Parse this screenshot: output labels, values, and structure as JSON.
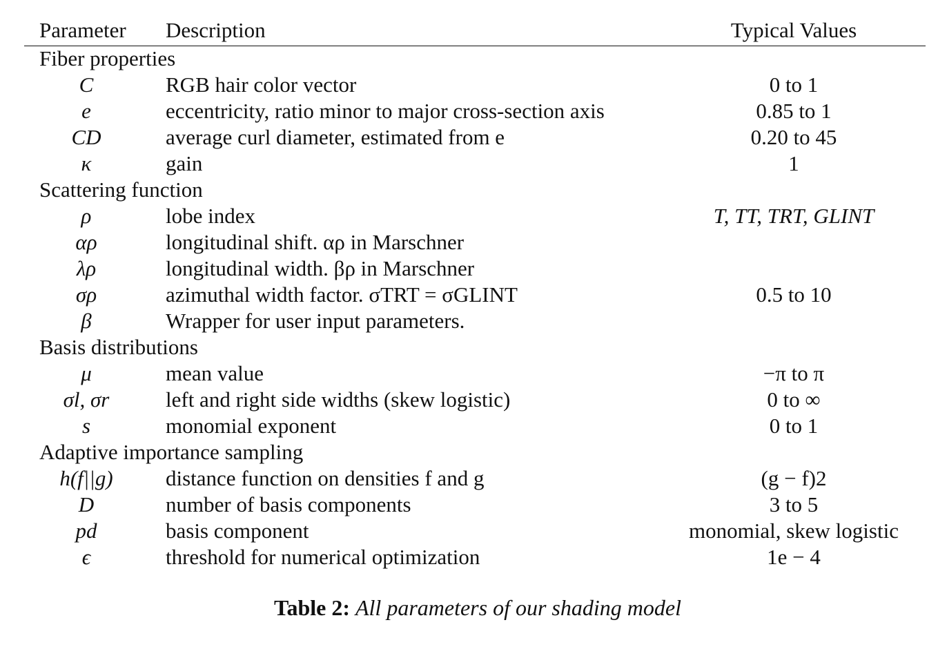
{
  "headers": {
    "parameter": "Parameter",
    "description": "Description",
    "values": "Typical Values"
  },
  "sections": [
    {
      "title": "Fiber properties",
      "rows": [
        {
          "symbol": "C",
          "description": "RGB hair color vector",
          "value": "0 to 1"
        },
        {
          "symbol": "e",
          "description": "eccentricity, ratio minor to major cross-section axis",
          "value": "0.85 to 1"
        },
        {
          "symbol": "CD",
          "description": "average curl diameter, estimated from e",
          "value": "0.20 to 45"
        },
        {
          "symbol": "κ",
          "description": "gain",
          "value": "1"
        }
      ]
    },
    {
      "title": "Scattering function",
      "rows": [
        {
          "symbol": "ρ",
          "description": "lobe index",
          "value": "T, TT, TRT, GLINT"
        },
        {
          "symbol": "αρ",
          "description": "longitudinal shift. αρ in Marschner",
          "value": ""
        },
        {
          "symbol": "λρ",
          "description": "longitudinal width. βρ in Marschner",
          "value": ""
        },
        {
          "symbol": "σρ",
          "description": "azimuthal width factor. σTRT = σGLINT",
          "value": "0.5 to 10"
        },
        {
          "symbol": "β",
          "description": "Wrapper for user input parameters.",
          "value": ""
        }
      ]
    },
    {
      "title": "Basis distributions",
      "rows": [
        {
          "symbol": "μ",
          "description": "mean value",
          "value": "−π to π"
        },
        {
          "symbol": "σl, σr",
          "description": "left and right side widths (skew logistic)",
          "value": "0 to ∞"
        },
        {
          "symbol": "s",
          "description": "monomial exponent",
          "value": "0 to 1"
        }
      ]
    },
    {
      "title": "Adaptive importance sampling",
      "rows": [
        {
          "symbol": "h(f||g)",
          "description": "distance function on densities f and g",
          "value": "(g − f)2"
        },
        {
          "symbol": "D",
          "description": "number of basis components",
          "value": "3 to 5"
        },
        {
          "symbol": "pd",
          "description": "basis component",
          "value": "monomial, skew logistic"
        },
        {
          "symbol": "ϵ",
          "description": "threshold for numerical optimization",
          "value": "1e − 4"
        }
      ]
    }
  ],
  "caption": {
    "label": "Table 2:",
    "text": "All parameters of our shading model"
  }
}
